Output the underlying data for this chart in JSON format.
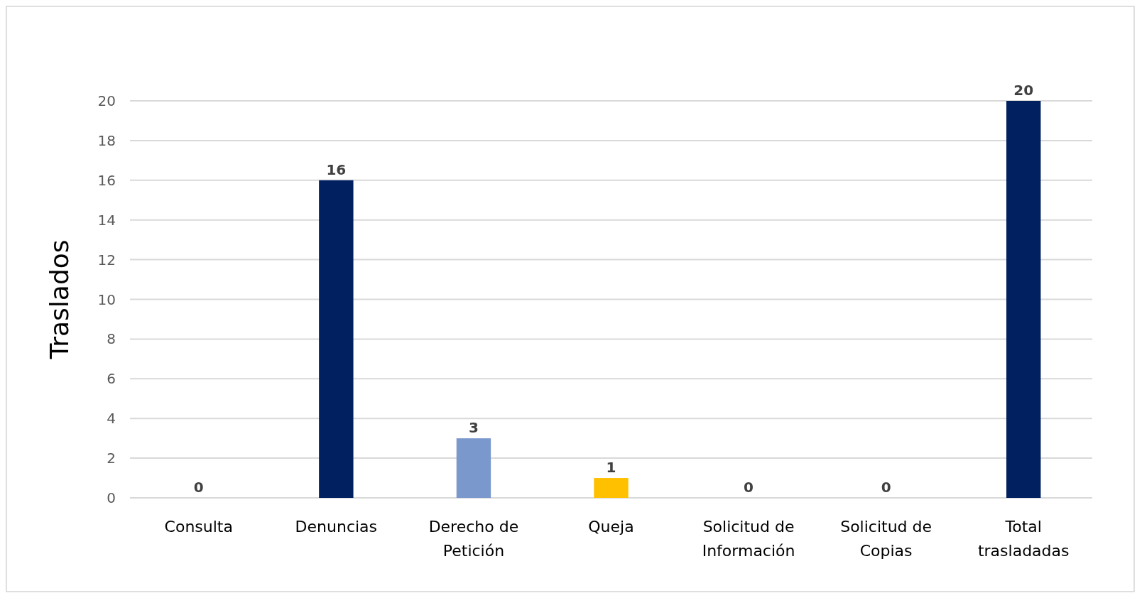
{
  "chart_data": {
    "type": "bar",
    "ylabel": "Traslados",
    "categories": [
      "Consulta",
      "Denuncias",
      "Derecho de Petición",
      "Queja",
      "Solicitud de Información",
      "Solicitud de Copias",
      "Total trasladadas"
    ],
    "values": [
      0,
      16,
      3,
      1,
      0,
      0,
      20
    ],
    "colors": [
      "#002060",
      "#002060",
      "#7a98cc",
      "#ffc000",
      "#5c2d91",
      "#990000",
      "#002060"
    ],
    "ylim": [
      0,
      20
    ],
    "yticks": [
      0,
      2,
      4,
      6,
      8,
      10,
      12,
      14,
      16,
      18,
      20
    ],
    "grid": true,
    "data_labels": true
  }
}
